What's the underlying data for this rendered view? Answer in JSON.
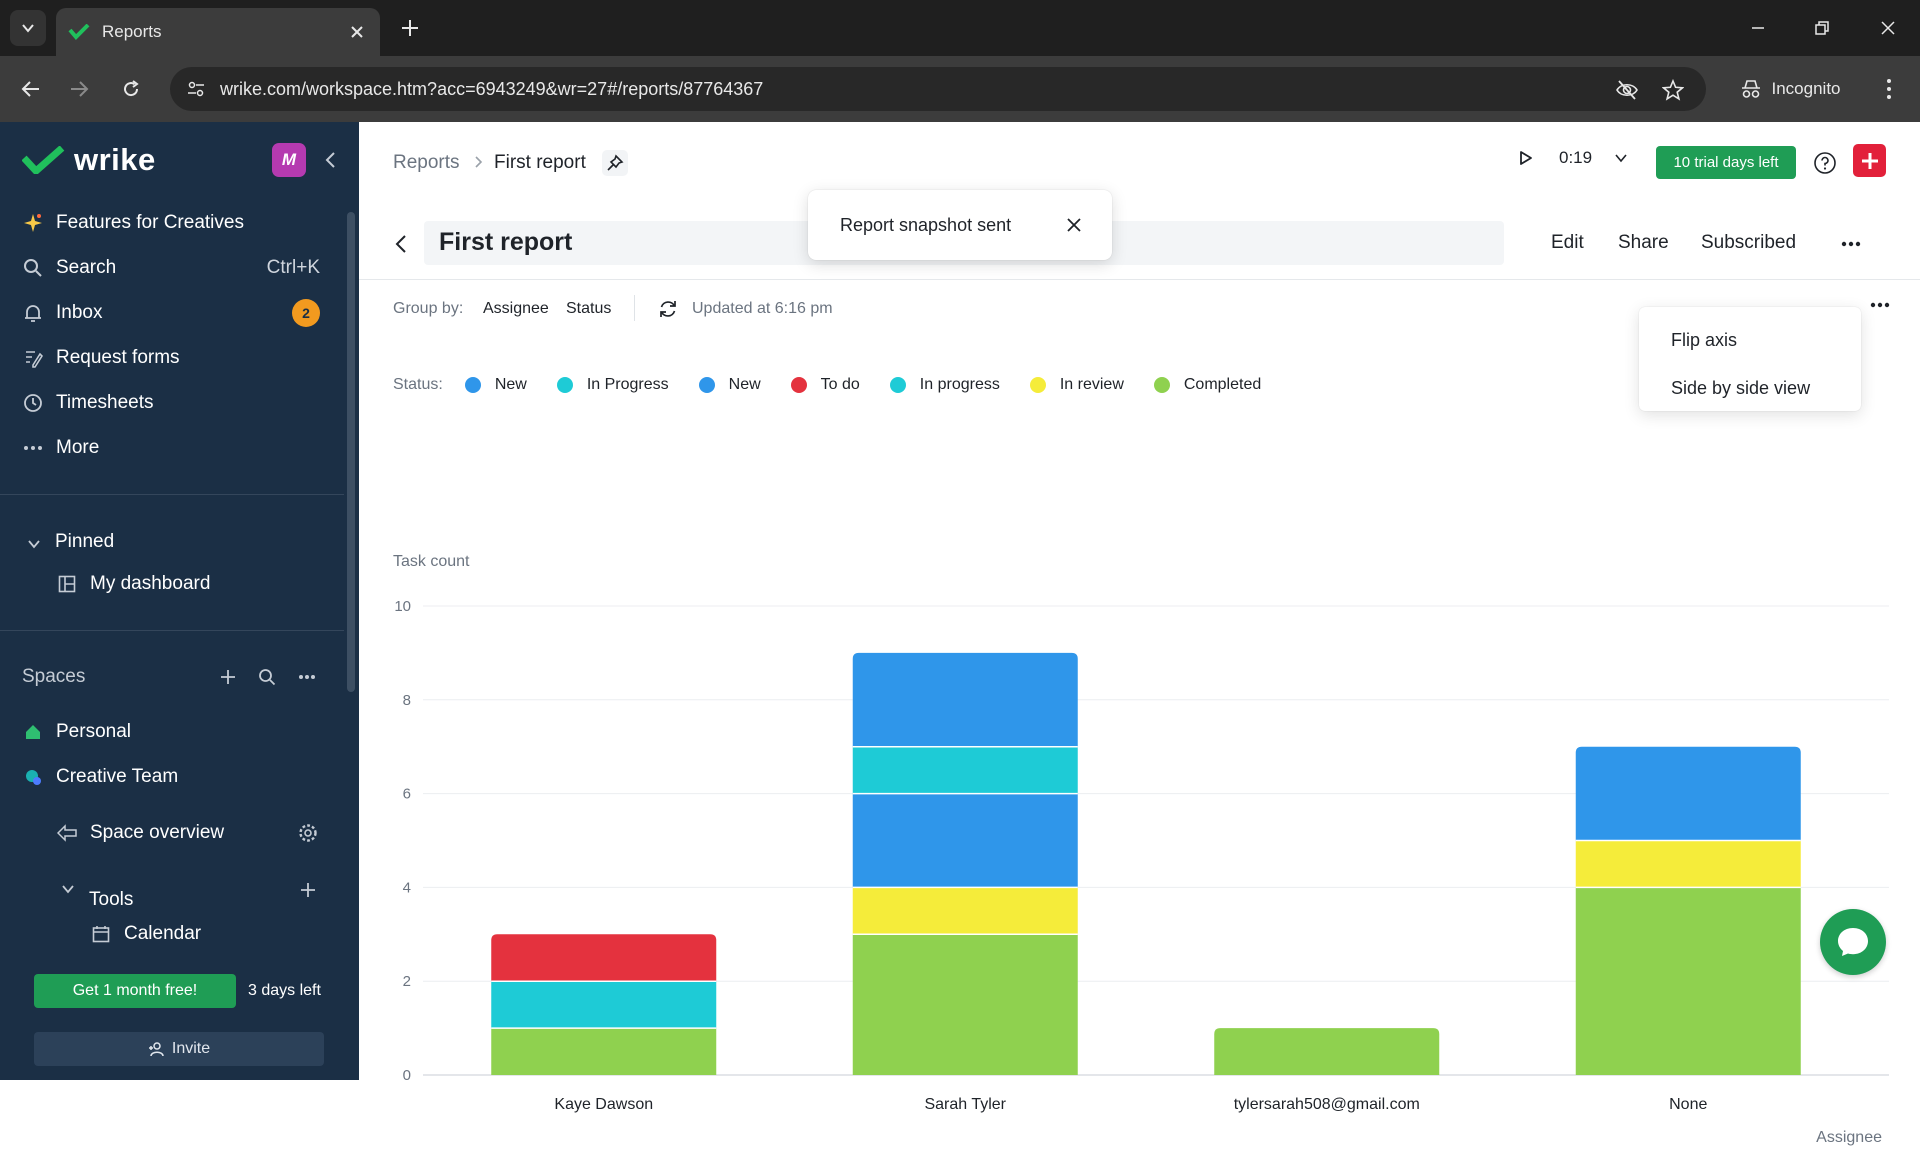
{
  "browser": {
    "tab_title": "Reports",
    "url": "wrike.com/workspace.htm?acc=6943249&wr=27#/reports/87764367",
    "incognito_label": "Incognito"
  },
  "sidebar": {
    "logo": "wrike",
    "workspace_initial": "M",
    "nav": [
      {
        "label": "Features for Creatives",
        "icon": "sparkle-icon"
      },
      {
        "label": "Search",
        "shortcut": "Ctrl+K",
        "icon": "search-icon"
      },
      {
        "label": "Inbox",
        "badge": "2",
        "icon": "bell-icon"
      },
      {
        "label": "Request forms",
        "icon": "form-icon"
      },
      {
        "label": "Timesheets",
        "icon": "clock-icon"
      },
      {
        "label": "More",
        "icon": "ellipsis-icon"
      }
    ],
    "pinned": {
      "label": "Pinned",
      "items": [
        {
          "label": "My dashboard",
          "icon": "dashboard-icon"
        }
      ]
    },
    "spaces": {
      "label": "Spaces",
      "items": [
        {
          "label": "Personal",
          "icon": "home-icon"
        },
        {
          "label": "Creative Team",
          "icon": "team-icon"
        },
        {
          "label": "Space overview",
          "icon": "overview-icon"
        },
        {
          "label": "Tools",
          "icon": "chevron-down-icon"
        },
        {
          "label": "Calendar",
          "icon": "calendar-icon"
        }
      ]
    },
    "promo_button": "Get 1 month free!",
    "days_left": "3 days left",
    "invite_button": "Invite"
  },
  "header": {
    "breadcrumb": [
      "Reports",
      "First report"
    ],
    "timer": "0:19",
    "trial_button": "10 trial days left"
  },
  "report": {
    "title": "First report",
    "actions": [
      "Edit",
      "Share",
      "Subscribed"
    ],
    "toast": "Report snapshot sent",
    "group_by_label": "Group by:",
    "group_by": [
      "Assignee",
      "Status"
    ],
    "updated": "Updated at 6:16 pm",
    "status_label": "Status:",
    "menu": [
      "Flip axis",
      "Side by side view"
    ]
  },
  "colors": {
    "brand_green": "#1f9d55",
    "sidebar_bg": "#1b2f45",
    "accent_red": "#e2203a"
  },
  "chart_data": {
    "type": "bar",
    "stacked": true,
    "ylabel": "Task count",
    "xlabel": "Assignee",
    "ylim": [
      0,
      10
    ],
    "yticks": [
      0,
      2,
      4,
      6,
      8,
      10
    ],
    "grid": true,
    "categories": [
      "Kaye Dawson",
      "Sarah Tyler",
      "tylersarah508@gmail.com",
      "None"
    ],
    "series": [
      {
        "name": "Completed",
        "color": "#8fd14f",
        "values": [
          1,
          3,
          1,
          4
        ]
      },
      {
        "name": "In review",
        "color": "#f5ec3a",
        "values": [
          0,
          1,
          0,
          1
        ]
      },
      {
        "name": "In progress",
        "color": "#1ecbd6",
        "values": [
          0,
          0,
          0,
          0
        ]
      },
      {
        "name": "To do",
        "color": "#e4323e",
        "values": [
          0,
          0,
          0,
          0
        ]
      },
      {
        "name": "New",
        "color": "#2f96ea",
        "values": [
          0,
          2,
          0,
          0
        ]
      },
      {
        "name": "In Progress",
        "color": "#1ecbd6",
        "values": [
          1,
          1,
          0,
          0
        ]
      },
      {
        "name": "New",
        "color": "#2f96ea",
        "values": [
          0,
          2,
          0,
          2
        ]
      },
      {
        "name": "To do",
        "color": "#e4323e",
        "values": [
          1,
          0,
          0,
          0
        ]
      }
    ],
    "legend": [
      {
        "name": "New",
        "color": "#2f96ea"
      },
      {
        "name": "In Progress",
        "color": "#1ecbd6"
      },
      {
        "name": "New",
        "color": "#2f96ea"
      },
      {
        "name": "To do",
        "color": "#e4323e"
      },
      {
        "name": "In progress",
        "color": "#1ecbd6"
      },
      {
        "name": "In review",
        "color": "#f5ec3a"
      },
      {
        "name": "Completed",
        "color": "#8fd14f"
      }
    ]
  }
}
